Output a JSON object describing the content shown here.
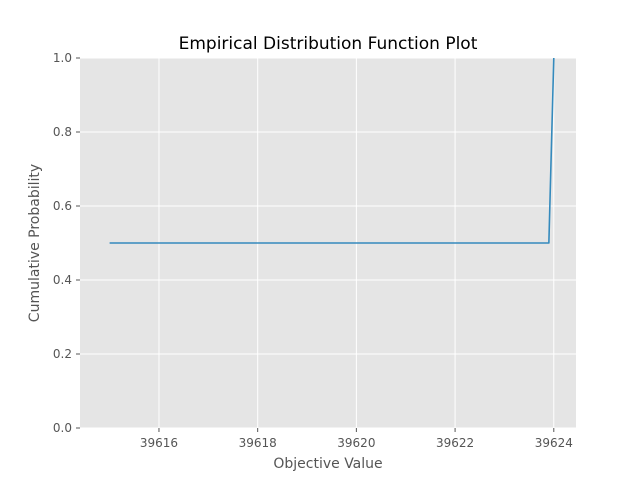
{
  "chart_data": {
    "type": "line",
    "title": "Empirical Distribution Function Plot",
    "xlabel": "Objective Value",
    "ylabel": "Cumulative Probability",
    "xlim": [
      39614.4,
      39624.45
    ],
    "ylim": [
      0.0,
      1.0
    ],
    "x_ticks": [
      39616,
      39618,
      39620,
      39622,
      39624
    ],
    "x_tick_labels": [
      "39616",
      "39618",
      "39620",
      "39622",
      "39624"
    ],
    "y_ticks": [
      0.0,
      0.2,
      0.4,
      0.6,
      0.8,
      1.0
    ],
    "y_tick_labels": [
      "0.0",
      "0.2",
      "0.4",
      "0.6",
      "0.8",
      "1.0"
    ],
    "grid": true,
    "series": [
      {
        "color": "#348abd",
        "x": [
          39615.0,
          39623.9,
          39624.0
        ],
        "y": [
          0.5,
          0.5,
          1.0
        ]
      }
    ],
    "colors": {
      "plot_background": "#e5e5e5",
      "grid": "#ffffff",
      "tick": "#555555"
    }
  }
}
